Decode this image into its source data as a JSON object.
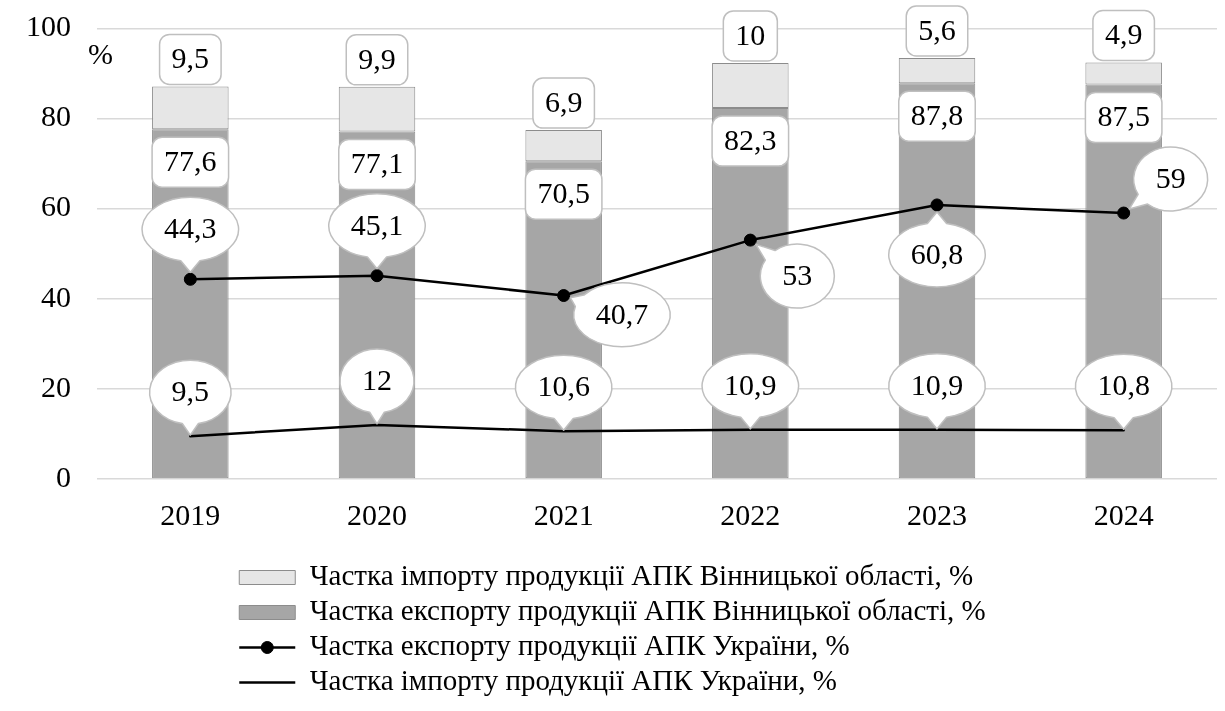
{
  "chart_data": {
    "type": "bar",
    "ylabel": "%",
    "categories": [
      "2019",
      "2020",
      "2021",
      "2022",
      "2023",
      "2024"
    ],
    "stacked": true,
    "series": [
      {
        "name": "Частка експорту продукції АПК Вінницької області, %",
        "color": "#a6a6a6",
        "values": [
          77.6,
          77.1,
          70.5,
          82.3,
          87.8,
          87.5
        ],
        "value_labels": [
          "77,6",
          "77,1",
          "70,5",
          "82,3",
          "87,8",
          "87,5"
        ]
      },
      {
        "name": "Частка імпорту продукції АПК Вінницької області, %",
        "color": "#e6e6e6",
        "values": [
          9.5,
          9.9,
          6.9,
          10,
          5.6,
          4.9
        ],
        "value_labels": [
          "9,5",
          "9,9",
          "6,9",
          "10",
          "5,6",
          "4,9"
        ]
      },
      {
        "name": "Частка експорту продукції АПК України, %",
        "type": "line",
        "color": "#000000",
        "marker": "circle",
        "values": [
          44.3,
          45.1,
          40.7,
          53,
          60.8,
          59
        ],
        "value_labels": [
          "44,3",
          "45,1",
          "40,7",
          "53",
          "60,8",
          "59"
        ]
      },
      {
        "name": "Частка імпорту продукції АПК України, %",
        "type": "line",
        "color": "#000000",
        "marker": "none",
        "values": [
          9.5,
          12,
          10.6,
          10.9,
          10.9,
          10.8
        ],
        "value_labels": [
          "9,5",
          "12",
          "10,6",
          "10,9",
          "10,9",
          "10,8"
        ]
      }
    ],
    "ylim": [
      0,
      100
    ],
    "yticks": [
      0,
      20,
      40,
      60,
      80,
      100
    ],
    "grid": "y",
    "legend": "bottom"
  }
}
